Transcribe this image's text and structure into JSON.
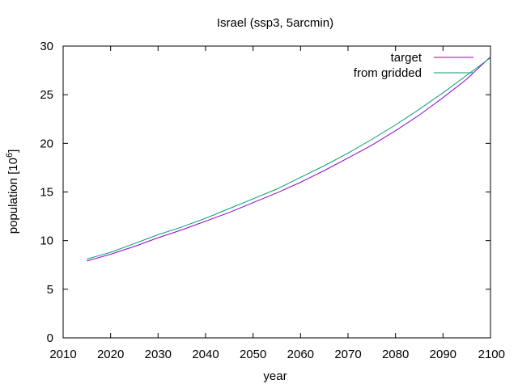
{
  "chart_data": {
    "type": "line",
    "title": "Israel (ssp3, 5arcmin)",
    "xlabel": "year",
    "ylabel": "population [10",
    "ylabel_exp": "6",
    "ylabel_tail": "]",
    "xlim": [
      2010,
      2100
    ],
    "ylim": [
      0,
      30
    ],
    "xticks": [
      2010,
      2020,
      2030,
      2040,
      2050,
      2060,
      2070,
      2080,
      2090,
      2100
    ],
    "yticks": [
      0,
      5,
      10,
      15,
      20,
      25,
      30
    ],
    "grid": false,
    "legend_position": "top-right",
    "x": [
      2015,
      2020,
      2025,
      2030,
      2035,
      2040,
      2045,
      2050,
      2055,
      2060,
      2065,
      2070,
      2075,
      2080,
      2085,
      2090,
      2095,
      2100
    ],
    "series": [
      {
        "name": "target",
        "color": "#9400d3",
        "values": [
          7.9,
          8.6,
          9.4,
          10.3,
          11.1,
          12.0,
          12.9,
          13.9,
          14.9,
          16.0,
          17.2,
          18.5,
          19.8,
          21.3,
          22.9,
          24.7,
          26.6,
          28.9
        ]
      },
      {
        "name": "from gridded",
        "color": "#009e73",
        "values": [
          8.1,
          8.8,
          9.7,
          10.6,
          11.4,
          12.3,
          13.3,
          14.3,
          15.3,
          16.5,
          17.7,
          19.0,
          20.4,
          21.9,
          23.5,
          25.2,
          27.0,
          28.8
        ]
      }
    ]
  }
}
